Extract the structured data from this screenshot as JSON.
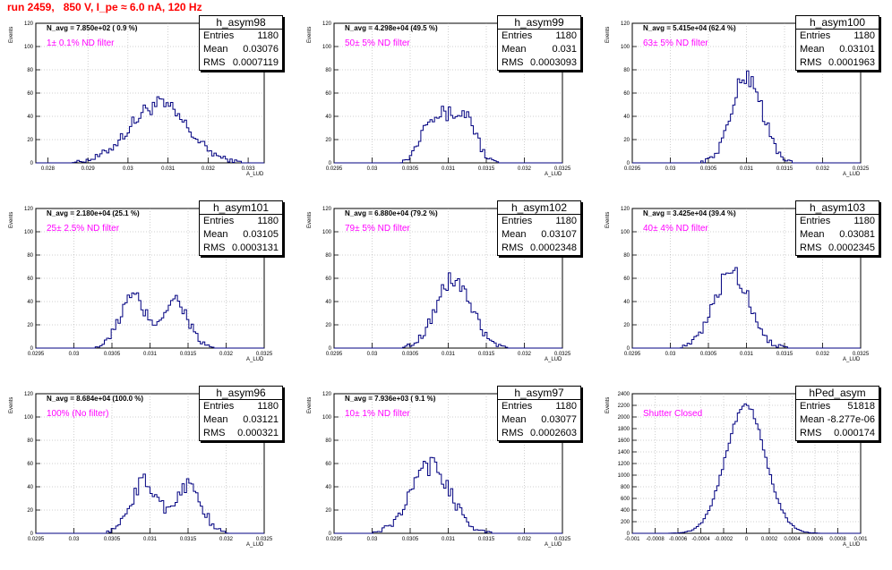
{
  "title": "run 2459,   850 V, I_pe ≈ 6.0 nA, 120 Hz",
  "stat_labels": {
    "entries": "Entries",
    "mean": "Mean",
    "rms": "RMS"
  },
  "colors": {
    "histogram": "#000080",
    "grid": "#a0a0a0",
    "title": "#ff0000",
    "annotation": "#ff00ff"
  },
  "chart_data": [
    {
      "type": "histogram",
      "name": "h_asym98",
      "navg": "N_avg = 7.850e+02 ( 0.9 %)",
      "filter": "1± 0.1% ND filter",
      "entries": "1180",
      "mean": "0.03076",
      "rms": "0.0007119",
      "xlabel": "A_LUD",
      "ylabel": "Events",
      "xlim": [
        0.0277,
        0.0334
      ],
      "ylim": [
        0,
        120
      ],
      "xticks": [
        "0.028",
        "0.029",
        "0.03",
        "0.031",
        "0.032",
        "0.033"
      ],
      "xtick_values": [
        0.028,
        0.029,
        0.03,
        0.031,
        0.032,
        0.033
      ],
      "yticks": [
        0,
        20,
        40,
        60,
        80,
        100,
        120
      ],
      "mu": 0.03076,
      "sigma": 0.00072,
      "peak": 50,
      "shape": "wide",
      "grid": true
    },
    {
      "type": "histogram",
      "name": "h_asym99",
      "navg": "N_avg = 4.298e+04 (49.5 %)",
      "filter": "50± 5% ND filter",
      "entries": "1180",
      "mean": "0.031",
      "rms": "0.0003093",
      "xlabel": "A_LUD",
      "ylabel": "Events",
      "xlim": [
        0.0295,
        0.0325
      ],
      "ylim": [
        0,
        120
      ],
      "xticks": [
        "0.0295",
        "0.03",
        "0.0305",
        "0.031",
        "0.0315",
        "0.032",
        "0.0325"
      ],
      "xtick_values": [
        0.0295,
        0.03,
        0.0305,
        0.031,
        0.0315,
        0.032,
        0.0325
      ],
      "yticks": [
        0,
        20,
        40,
        60,
        80,
        100,
        120
      ],
      "mu": 0.031,
      "sigma": 0.00031,
      "peak": 42,
      "shape": "flat",
      "grid": true
    },
    {
      "type": "histogram",
      "name": "h_asym100",
      "navg": "N_avg = 5.415e+04 (62.4 %)",
      "filter": "63± 5% ND filter",
      "entries": "1180",
      "mean": "0.03101",
      "rms": "0.0001963",
      "xlabel": "A_LUD",
      "ylabel": "Events",
      "xlim": [
        0.0295,
        0.0325
      ],
      "ylim": [
        0,
        120
      ],
      "xticks": [
        "0.0295",
        "0.03",
        "0.0305",
        "0.031",
        "0.0315",
        "0.032",
        "0.0325"
      ],
      "xtick_values": [
        0.0295,
        0.03,
        0.0305,
        0.031,
        0.0315,
        0.032,
        0.0325
      ],
      "yticks": [
        0,
        20,
        40,
        60,
        80,
        100,
        120
      ],
      "mu": 0.03101,
      "sigma": 0.0002,
      "peak": 75,
      "shape": "peak",
      "grid": true
    },
    {
      "type": "histogram",
      "name": "h_asym101",
      "navg": "N_avg = 2.180e+04 (25.1 %)",
      "filter": "25± 2.5% ND filter",
      "entries": "1180",
      "mean": "0.03105",
      "rms": "0.0003131",
      "xlabel": "A_LUD",
      "ylabel": "Events",
      "xlim": [
        0.0295,
        0.0325
      ],
      "ylim": [
        0,
        120
      ],
      "xticks": [
        "0.0295",
        "0.03",
        "0.0305",
        "0.031",
        "0.0315",
        "0.032",
        "0.0325"
      ],
      "xtick_values": [
        0.0295,
        0.03,
        0.0305,
        0.031,
        0.0315,
        0.032,
        0.0325
      ],
      "yticks": [
        0,
        20,
        40,
        60,
        80,
        100,
        120
      ],
      "mu": 0.03105,
      "sigma": 0.00031,
      "peak": 46,
      "shape": "bimodal",
      "grid": true
    },
    {
      "type": "histogram",
      "name": "h_asym102",
      "navg": "N_avg = 6.880e+04 (79.2 %)",
      "filter": "79± 5% ND filter",
      "entries": "1180",
      "mean": "0.03107",
      "rms": "0.0002348",
      "xlabel": "A_LUD",
      "ylabel": "Events",
      "xlim": [
        0.0295,
        0.0325
      ],
      "ylim": [
        0,
        120
      ],
      "xticks": [
        "0.0295",
        "0.03",
        "0.0305",
        "0.031",
        "0.0315",
        "0.032",
        "0.0325"
      ],
      "xtick_values": [
        0.0295,
        0.03,
        0.0305,
        0.031,
        0.0315,
        0.032,
        0.0325
      ],
      "yticks": [
        0,
        20,
        40,
        60,
        80,
        100,
        120
      ],
      "mu": 0.03107,
      "sigma": 0.00023,
      "peak": 59,
      "shape": "peak",
      "grid": true
    },
    {
      "type": "histogram",
      "name": "h_asym103",
      "navg": "N_avg = 3.425e+04 (39.4 %)",
      "filter": "40± 4% ND filter",
      "entries": "1180",
      "mean": "0.03081",
      "rms": "0.0002345",
      "xlabel": "A_LUD",
      "ylabel": "Events",
      "xlim": [
        0.0295,
        0.0325
      ],
      "ylim": [
        0,
        120
      ],
      "xticks": [
        "0.0295",
        "0.03",
        "0.0305",
        "0.031",
        "0.0315",
        "0.032",
        "0.0325"
      ],
      "xtick_values": [
        0.0295,
        0.03,
        0.0305,
        0.031,
        0.0315,
        0.032,
        0.0325
      ],
      "yticks": [
        0,
        20,
        40,
        60,
        80,
        100,
        120
      ],
      "mu": 0.03081,
      "sigma": 0.00023,
      "peak": 66,
      "shape": "peak",
      "grid": true
    },
    {
      "type": "histogram",
      "name": "h_asym96",
      "navg": "N_avg = 8.684e+04 (100.0 %)",
      "filter": "100% (No filter)",
      "entries": "1180",
      "mean": "0.03121",
      "rms": "0.000321",
      "xlabel": "A_LUD",
      "ylabel": "Events",
      "xlim": [
        0.0295,
        0.0325
      ],
      "ylim": [
        0,
        120
      ],
      "xticks": [
        "0.0295",
        "0.03",
        "0.0305",
        "0.031",
        "0.0315",
        "0.032",
        "0.0325"
      ],
      "xtick_values": [
        0.0295,
        0.03,
        0.0305,
        0.031,
        0.0315,
        0.032,
        0.0325
      ],
      "yticks": [
        0,
        20,
        40,
        60,
        80,
        100,
        120
      ],
      "mu": 0.03121,
      "sigma": 0.00032,
      "peak": 46,
      "shape": "bimodal",
      "grid": true
    },
    {
      "type": "histogram",
      "name": "h_asym97",
      "navg": "N_avg = 7.936e+03 ( 9.1 %)",
      "filter": "10± 1% ND filter",
      "entries": "1180",
      "mean": "0.03077",
      "rms": "0.0002603",
      "xlabel": "A_LUD",
      "ylabel": "Events",
      "xlim": [
        0.0295,
        0.0325
      ],
      "ylim": [
        0,
        120
      ],
      "xticks": [
        "0.0295",
        "0.03",
        "0.0305",
        "0.031",
        "0.0315",
        "0.032",
        "0.0325"
      ],
      "xtick_values": [
        0.0295,
        0.03,
        0.0305,
        0.031,
        0.0315,
        0.032,
        0.0325
      ],
      "yticks": [
        0,
        20,
        40,
        60,
        80,
        100,
        120
      ],
      "mu": 0.03077,
      "sigma": 0.00026,
      "peak": 58,
      "shape": "peak",
      "grid": true
    },
    {
      "type": "histogram",
      "name": "hPed_asym",
      "navg": "",
      "filter": "Shutter Closed",
      "entries": "51818",
      "mean": "-8.277e-06",
      "rms": "0.000174",
      "xlabel": "A_LUD",
      "ylabel": "Events",
      "xlim": [
        -0.001,
        0.001
      ],
      "ylim": [
        0,
        2400
      ],
      "xticks": [
        "-0.001",
        "-0.0008",
        "-0.0006",
        "-0.0004",
        "-0.0002",
        "0",
        "0.0002",
        "0.0004",
        "0.0006",
        "0.0008",
        "0.001"
      ],
      "xtick_values": [
        -0.001,
        -0.0008,
        -0.0006,
        -0.0004,
        -0.0002,
        0,
        0.0002,
        0.0004,
        0.0006,
        0.0008,
        0.001
      ],
      "yticks": [
        0,
        200,
        400,
        600,
        800,
        1000,
        1200,
        1400,
        1600,
        1800,
        2000,
        2200,
        2400
      ],
      "mu": -8.3e-06,
      "sigma": 0.000174,
      "peak": 2200,
      "shape": "gauss",
      "grid": true
    }
  ]
}
